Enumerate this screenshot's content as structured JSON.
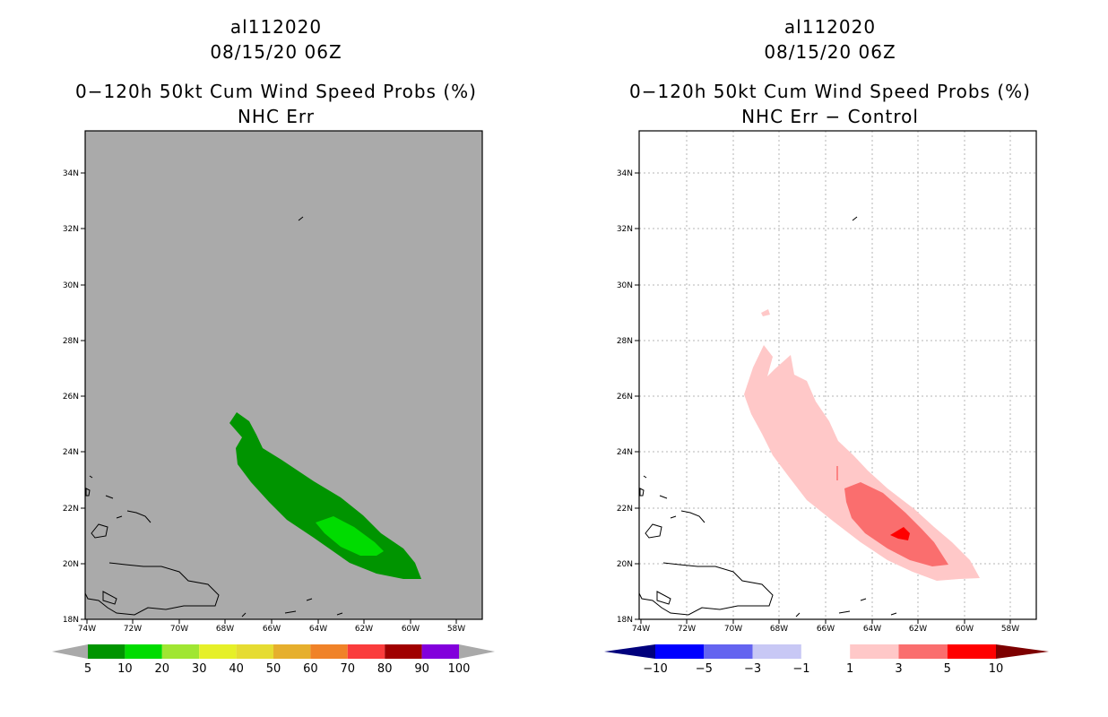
{
  "left_panel": {
    "storm_id": "al112020",
    "datetime": "08/15/20 06Z",
    "product": "0−120h 50kt Cum Wind Speed Probs (%)",
    "subtitle": "NHC Err",
    "background_color": "#aaaaaa",
    "lat_labels": [
      "34N",
      "32N",
      "30N",
      "28N",
      "26N",
      "24N",
      "22N",
      "20N",
      "18N"
    ],
    "lon_labels": [
      "74W",
      "72W",
      "70W",
      "68W",
      "66W",
      "64W",
      "62W",
      "60W",
      "58W"
    ],
    "colorbar": {
      "labels": [
        "5",
        "10",
        "20",
        "30",
        "40",
        "50",
        "60",
        "70",
        "80",
        "90",
        "100"
      ],
      "colors": [
        "#009400",
        "#00dc00",
        "#a0e632",
        "#e6f028",
        "#e6dc32",
        "#e6af2d",
        "#f08228",
        "#fa3c3c",
        "#a00000",
        "#8200dc"
      ],
      "end_color": "#a9a9a9"
    }
  },
  "right_panel": {
    "storm_id": "al112020",
    "datetime": "08/15/20 06Z",
    "product": "0−120h 50kt Cum Wind Speed Probs (%)",
    "subtitle": "NHC Err − Control",
    "background_color": "#ffffff",
    "lat_labels": [
      "34N",
      "32N",
      "30N",
      "28N",
      "26N",
      "24N",
      "22N",
      "20N",
      "18N"
    ],
    "lon_labels": [
      "74W",
      "72W",
      "70W",
      "68W",
      "66W",
      "64W",
      "62W",
      "60W",
      "58W"
    ],
    "colorbar": {
      "labels": [
        "−10",
        "−5",
        "−3",
        "−1",
        "1",
        "3",
        "5",
        "10"
      ],
      "colors": [
        "#0000ff",
        "#6464f0",
        "#c8c8f5",
        "#ffffff",
        "#ffc8c8",
        "#fa6e6e",
        "#ff0000"
      ],
      "left_end_color": "#00007d",
      "right_end_color": "#7d0000"
    }
  }
}
